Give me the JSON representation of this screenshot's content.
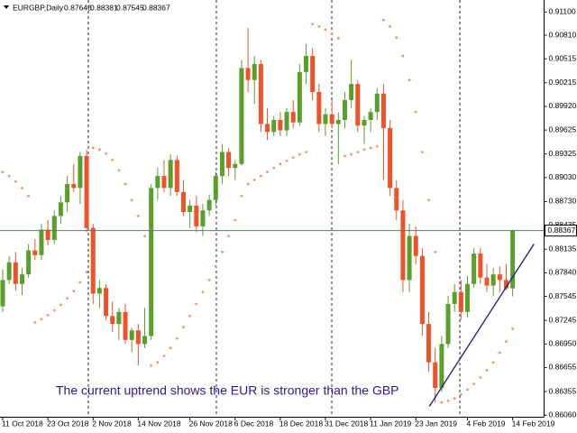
{
  "header": {
    "symbol": "EURGBP,Daily"
  },
  "chart_data": {
    "type": "candlestick",
    "annotation": "The current uptrend shows the EUR is stronger than the GBP",
    "categories": [
      "11 Oct 2018",
      null,
      null,
      null,
      null,
      null,
      null,
      "23 Oct 2018",
      null,
      null,
      null,
      null,
      null,
      null,
      "2 Nov 2018",
      null,
      null,
      null,
      null,
      null,
      null,
      "14 Nov 2018",
      null,
      null,
      null,
      null,
      null,
      null,
      null,
      "26 Nov 2018",
      null,
      null,
      null,
      null,
      null,
      null,
      "6 Dec 2018",
      null,
      null,
      null,
      null,
      null,
      null,
      "18 Dec 2018",
      null,
      null,
      null,
      null,
      null,
      null,
      "31 Dec 2018",
      null,
      null,
      null,
      null,
      null,
      null,
      "11 Jan 2019",
      null,
      null,
      null,
      null,
      null,
      null,
      "23 Jan 2019",
      null,
      null,
      null,
      null,
      null,
      null,
      null,
      "4 Feb 2019",
      null,
      null,
      null,
      null,
      null,
      null,
      "14 Feb 2019"
    ],
    "ohlc": [
      [
        0.8742,
        0.8788,
        0.8735,
        0.8775
      ],
      [
        0.8775,
        0.8805,
        0.877,
        0.8797
      ],
      [
        0.8797,
        0.881,
        0.8762,
        0.877
      ],
      [
        0.877,
        0.879,
        0.8756,
        0.8782
      ],
      [
        0.8782,
        0.882,
        0.8778,
        0.8812
      ],
      [
        0.8812,
        0.8826,
        0.88,
        0.8806
      ],
      [
        0.8806,
        0.8845,
        0.88,
        0.8838
      ],
      [
        0.8838,
        0.885,
        0.8818,
        0.8825
      ],
      [
        0.8825,
        0.8862,
        0.882,
        0.8855
      ],
      [
        0.8855,
        0.888,
        0.8845,
        0.8872
      ],
      [
        0.8872,
        0.8905,
        0.886,
        0.8895
      ],
      [
        0.8895,
        0.892,
        0.8885,
        0.889
      ],
      [
        0.889,
        0.8935,
        0.887,
        0.893
      ],
      [
        0.893,
        0.8938,
        0.8835,
        0.884
      ],
      [
        0.884,
        0.8845,
        0.8745,
        0.8758
      ],
      [
        0.8758,
        0.8775,
        0.874,
        0.8765
      ],
      [
        0.8765,
        0.877,
        0.8725,
        0.873
      ],
      [
        0.873,
        0.8748,
        0.871,
        0.872
      ],
      [
        0.872,
        0.874,
        0.87,
        0.8735
      ],
      [
        0.8735,
        0.8745,
        0.8695,
        0.87
      ],
      [
        0.87,
        0.8715,
        0.8685,
        0.8712
      ],
      [
        0.8712,
        0.872,
        0.8668,
        0.8695
      ],
      [
        0.8695,
        0.874,
        0.869,
        0.8705
      ],
      [
        0.8705,
        0.8895,
        0.87,
        0.889
      ],
      [
        0.889,
        0.8915,
        0.8875,
        0.8905
      ],
      [
        0.8905,
        0.8925,
        0.8885,
        0.889
      ],
      [
        0.889,
        0.8932,
        0.888,
        0.8925
      ],
      [
        0.8925,
        0.893,
        0.888,
        0.8885
      ],
      [
        0.8885,
        0.89,
        0.8855,
        0.886
      ],
      [
        0.886,
        0.8875,
        0.884,
        0.8868
      ],
      [
        0.8868,
        0.888,
        0.8835,
        0.8842
      ],
      [
        0.8842,
        0.887,
        0.883,
        0.8862
      ],
      [
        0.8862,
        0.8882,
        0.8855,
        0.8875
      ],
      [
        0.8875,
        0.891,
        0.8868,
        0.8905
      ],
      [
        0.8905,
        0.8945,
        0.8895,
        0.8935
      ],
      [
        0.8935,
        0.894,
        0.8905,
        0.8915
      ],
      [
        0.8915,
        0.8925,
        0.89,
        0.892
      ],
      [
        0.892,
        0.905,
        0.8918,
        0.904
      ],
      [
        0.904,
        0.909,
        0.901,
        0.9025
      ],
      [
        0.9025,
        0.9055,
        0.8995,
        0.9045
      ],
      [
        0.9045,
        0.905,
        0.896,
        0.897
      ],
      [
        0.897,
        0.899,
        0.895,
        0.896
      ],
      [
        0.896,
        0.898,
        0.8955,
        0.8975
      ],
      [
        0.8975,
        0.8985,
        0.8955,
        0.8962
      ],
      [
        0.8962,
        0.899,
        0.8955,
        0.8985
      ],
      [
        0.8985,
        0.9,
        0.8965,
        0.8972
      ],
      [
        0.8972,
        0.9045,
        0.8968,
        0.9035
      ],
      [
        0.9035,
        0.907,
        0.902,
        0.9055
      ],
      [
        0.9055,
        0.9065,
        0.9,
        0.901
      ],
      [
        0.901,
        0.902,
        0.896,
        0.897
      ],
      [
        0.897,
        0.899,
        0.8955,
        0.8982
      ],
      [
        0.8982,
        0.9,
        0.8965,
        0.897
      ],
      [
        0.897,
        0.8985,
        0.892,
        0.8975
      ],
      [
        0.8975,
        0.901,
        0.8965,
        0.9
      ],
      [
        0.9,
        0.905,
        0.899,
        0.902
      ],
      [
        0.902,
        0.9025,
        0.896,
        0.8968
      ],
      [
        0.8968,
        0.898,
        0.8945,
        0.8975
      ],
      [
        0.8975,
        0.899,
        0.896,
        0.8985
      ],
      [
        0.8985,
        0.9015,
        0.8975,
        0.9008
      ],
      [
        0.9008,
        0.902,
        0.89,
        0.8965
      ],
      [
        0.8965,
        0.8975,
        0.888,
        0.889
      ],
      [
        0.889,
        0.89,
        0.885,
        0.8862
      ],
      [
        0.8862,
        0.8875,
        0.876,
        0.8775
      ],
      [
        0.8775,
        0.8845,
        0.876,
        0.883
      ],
      [
        0.883,
        0.8842,
        0.8795,
        0.8805
      ],
      [
        0.8805,
        0.8815,
        0.8705,
        0.872
      ],
      [
        0.872,
        0.8735,
        0.866,
        0.8672
      ],
      [
        0.8672,
        0.869,
        0.8622,
        0.864
      ],
      [
        0.864,
        0.8705,
        0.8635,
        0.8695
      ],
      [
        0.8695,
        0.8755,
        0.869,
        0.8745
      ],
      [
        0.8745,
        0.877,
        0.8735,
        0.876
      ],
      [
        0.876,
        0.8775,
        0.8725,
        0.8735
      ],
      [
        0.8735,
        0.878,
        0.8728,
        0.877
      ],
      [
        0.877,
        0.8815,
        0.8765,
        0.8808
      ],
      [
        0.8808,
        0.8815,
        0.877,
        0.8778
      ],
      [
        0.8778,
        0.8795,
        0.876,
        0.8768
      ],
      [
        0.8768,
        0.879,
        0.8755,
        0.8782
      ],
      [
        0.8782,
        0.8792,
        0.876,
        0.8775
      ],
      [
        0.8775,
        0.8795,
        0.8762,
        0.87646
      ],
      [
        0.87646,
        0.88381,
        0.87545,
        0.88367
      ]
    ],
    "up_color": "#5a9e2c",
    "down_color": "#f0502a",
    "sar": {
      "color": "#f7936a",
      "values": [
        0.891,
        0.8905,
        0.8898,
        0.889,
        0.888,
        0.8722,
        0.8726,
        0.8731,
        0.8737,
        0.8744,
        0.8752,
        0.8761,
        0.8772,
        0.8785,
        0.894,
        0.8938,
        0.8933,
        0.8925,
        0.8912,
        0.8895,
        0.8875,
        0.8855,
        0.883,
        0.8668,
        0.8672,
        0.868,
        0.869,
        0.8702,
        0.8716,
        0.873,
        0.8745,
        0.876,
        0.8775,
        0.8792,
        0.881,
        0.883,
        0.885,
        0.888,
        0.8895,
        0.89,
        0.8905,
        0.891,
        0.8915,
        0.892,
        0.8924,
        0.8928,
        0.8932,
        0.8935,
        0.9095,
        0.9092,
        0.9088,
        0.9083,
        0.9077,
        0.893,
        0.8932,
        0.8935,
        0.8938,
        0.894,
        0.8942,
        0.91,
        0.9092,
        0.9078,
        0.9055,
        0.9025,
        0.8985,
        0.8935,
        0.8875,
        0.881,
        0.8622,
        0.8624,
        0.8627,
        0.8632,
        0.8638,
        0.8645,
        0.8653,
        0.8662,
        0.8672,
        0.8684,
        0.8698,
        0.8714
      ]
    },
    "trendline": {
      "color": "#1c1c7a",
      "x": [
        66.1,
        82.3
      ],
      "y": [
        0.8617,
        0.882
      ]
    },
    "ylim": [
      0.8604,
      0.9125
    ],
    "yticks": [
      {
        "value": 0.911,
        "label": "0.91100"
      },
      {
        "value": 0.9081,
        "label": "0.90810"
      },
      {
        "value": 0.90515,
        "label": "0.90515"
      },
      {
        "value": 0.90215,
        "label": "0.90215"
      },
      {
        "value": 0.8992,
        "label": "0.89920"
      },
      {
        "value": 0.89625,
        "label": "0.89625"
      },
      {
        "value": 0.89325,
        "label": "0.89325"
      },
      {
        "value": 0.8903,
        "label": "0.89030"
      },
      {
        "value": 0.8873,
        "label": "0.88730"
      },
      {
        "value": 0.88435,
        "label": "0.88435"
      },
      {
        "value": 0.88135,
        "label": "0.88135"
      },
      {
        "value": 0.8784,
        "label": "0.87840"
      },
      {
        "value": 0.87545,
        "label": "0.87545"
      },
      {
        "value": 0.87245,
        "label": "0.87245"
      },
      {
        "value": 0.8695,
        "label": "0.86950"
      },
      {
        "value": 0.86655,
        "label": "0.86655"
      },
      {
        "value": 0.86355,
        "label": "0.86355"
      },
      {
        "value": 0.8606,
        "label": "0.86060"
      }
    ]
  }
}
